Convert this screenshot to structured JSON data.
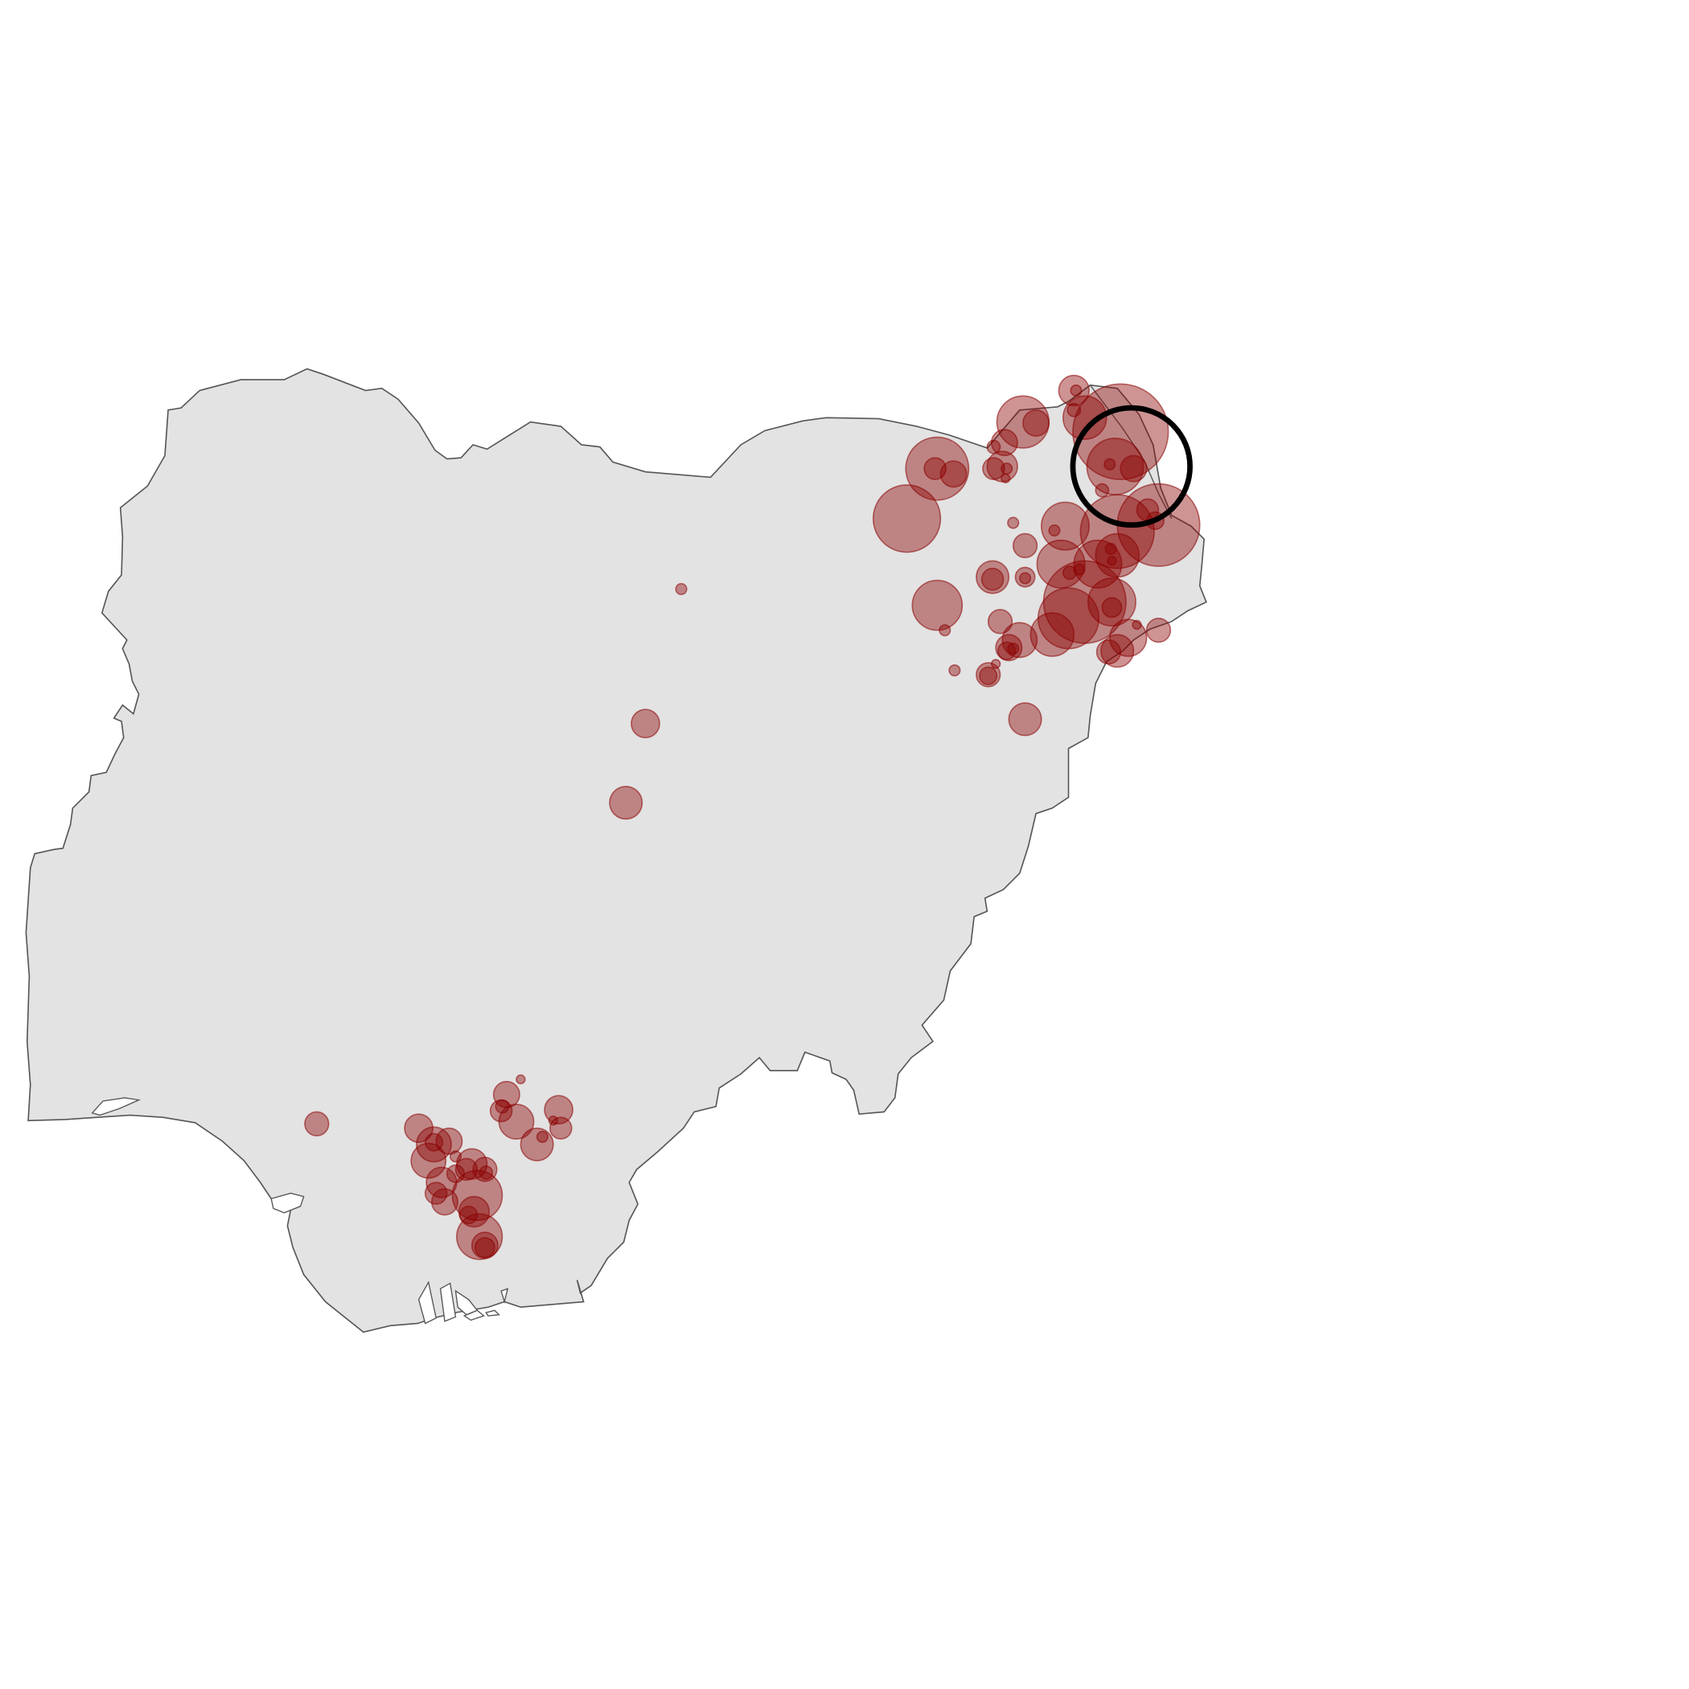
{
  "map": {
    "country_fill": "#e3e3e3",
    "country_stroke": "#555555",
    "bubble_fill": "#8b0000",
    "bubble_fill_opacity": 0.42,
    "highlight_stroke": "#000000"
  }
}
